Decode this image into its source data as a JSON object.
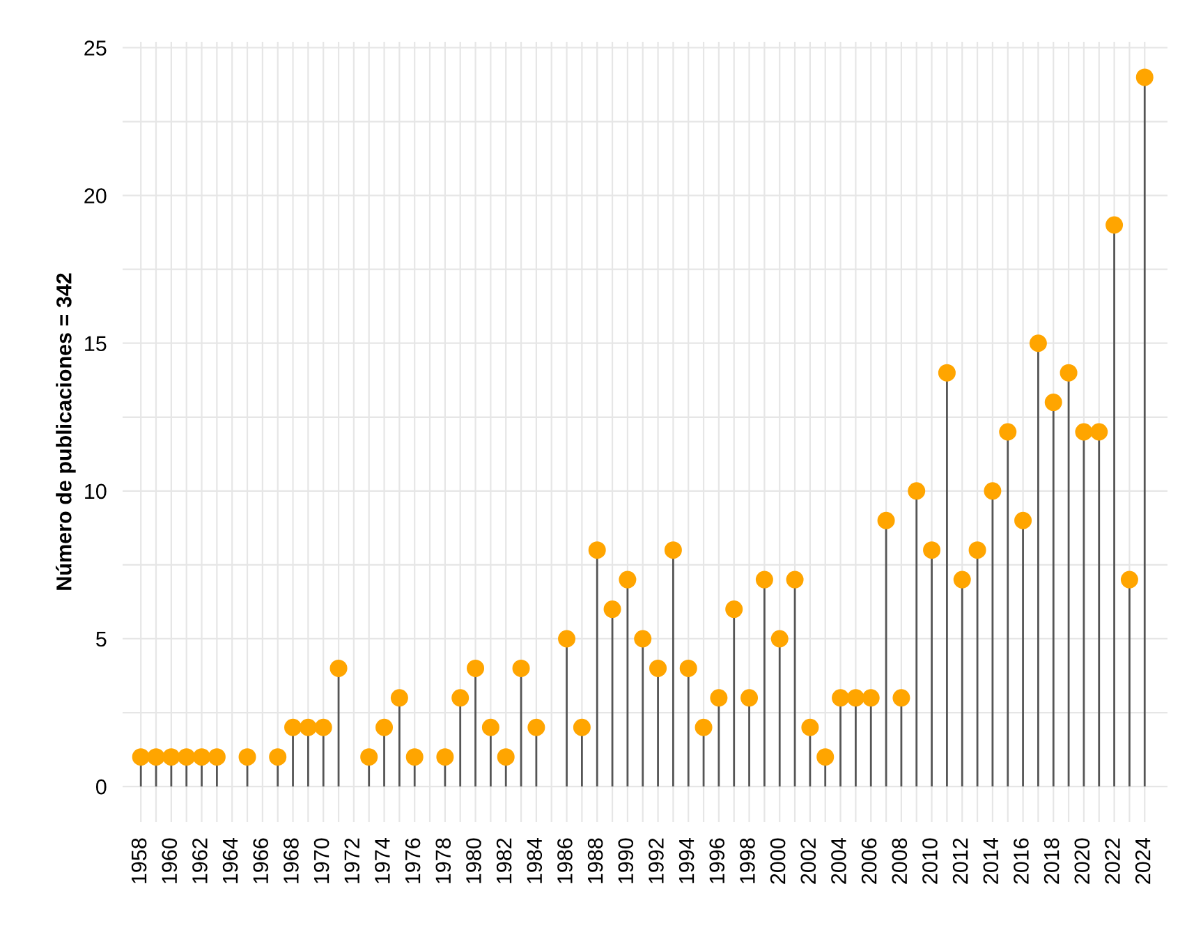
{
  "chart_data": {
    "type": "lollipop",
    "ylabel": "Número de publicaciones = 342",
    "x": [
      1958,
      1959,
      1960,
      1961,
      1962,
      1963,
      1965,
      1967,
      1968,
      1969,
      1970,
      1971,
      1973,
      1974,
      1975,
      1976,
      1978,
      1979,
      1980,
      1981,
      1982,
      1983,
      1984,
      1986,
      1987,
      1988,
      1989,
      1990,
      1991,
      1992,
      1993,
      1994,
      1995,
      1996,
      1997,
      1998,
      1999,
      2000,
      2001,
      2002,
      2003,
      2004,
      2005,
      2006,
      2007,
      2008,
      2009,
      2010,
      2011,
      2012,
      2013,
      2014,
      2015,
      2016,
      2017,
      2018,
      2019,
      2020,
      2021,
      2022,
      2023,
      2024
    ],
    "values": [
      1,
      1,
      1,
      1,
      1,
      1,
      1,
      1,
      2,
      2,
      2,
      4,
      1,
      2,
      3,
      1,
      1,
      3,
      4,
      2,
      1,
      4,
      2,
      5,
      2,
      8,
      6,
      7,
      5,
      4,
      8,
      4,
      2,
      3,
      6,
      3,
      7,
      5,
      7,
      2,
      1,
      3,
      3,
      3,
      9,
      3,
      10,
      8,
      14,
      7,
      8,
      10,
      12,
      9,
      15,
      13,
      14,
      12,
      12,
      19,
      7,
      24
    ],
    "color": "#ffa500",
    "marker": "circle",
    "grid": true,
    "xlim": [
      1956.8,
      2025.5
    ],
    "xticks": [
      1958,
      {
        "value": 1959,
        "label": null
      },
      1960,
      {
        "value": 1961,
        "label": null
      },
      1962,
      {
        "value": 1963,
        "label": null
      },
      1964,
      {
        "value": 1965,
        "label": null
      },
      1966,
      {
        "value": 1967,
        "label": null
      },
      1968,
      {
        "value": 1969,
        "label": null
      },
      1970,
      {
        "value": 1971,
        "label": null
      },
      1972,
      {
        "value": 1973,
        "label": null
      },
      1974,
      {
        "value": 1975,
        "label": null
      },
      1976,
      {
        "value": 1977,
        "label": null
      },
      1978,
      {
        "value": 1979,
        "label": null
      },
      1980,
      {
        "value": 1981,
        "label": null
      },
      1982,
      {
        "value": 1983,
        "label": null
      },
      1984,
      {
        "value": 1985,
        "label": null
      },
      1986,
      {
        "value": 1987,
        "label": null
      },
      1988,
      {
        "value": 1989,
        "label": null
      },
      1990,
      {
        "value": 1991,
        "label": null
      },
      1992,
      {
        "value": 1993,
        "label": null
      },
      1994,
      {
        "value": 1995,
        "label": null
      },
      1996,
      {
        "value": 1997,
        "label": null
      },
      1998,
      {
        "value": 1999,
        "label": null
      },
      2000,
      {
        "value": 2001,
        "label": null
      },
      2002,
      {
        "value": 2003,
        "label": null
      },
      2004,
      {
        "value": 2005,
        "label": null
      },
      2006,
      {
        "value": 2007,
        "label": null
      },
      2008,
      {
        "value": 2009,
        "label": null
      },
      2010,
      {
        "value": 2011,
        "label": null
      },
      2012,
      {
        "value": 2013,
        "label": null
      },
      2014,
      {
        "value": 2015,
        "label": null
      },
      2016,
      {
        "value": 2017,
        "label": null
      },
      2018,
      {
        "value": 2019,
        "label": null
      },
      2020,
      {
        "value": 2021,
        "label": null
      },
      2022,
      {
        "value": 2023,
        "label": null
      },
      2024
    ],
    "ylim": [
      -1.2,
      25.2
    ],
    "yticks": [
      0,
      {
        "value": 2.5,
        "label": null
      },
      5,
      {
        "value": 7.5,
        "label": null
      },
      10,
      {
        "value": 12.5,
        "label": null
      },
      15,
      {
        "value": 17.5,
        "label": null
      },
      20,
      {
        "value": 22.5,
        "label": null
      },
      25
    ]
  }
}
